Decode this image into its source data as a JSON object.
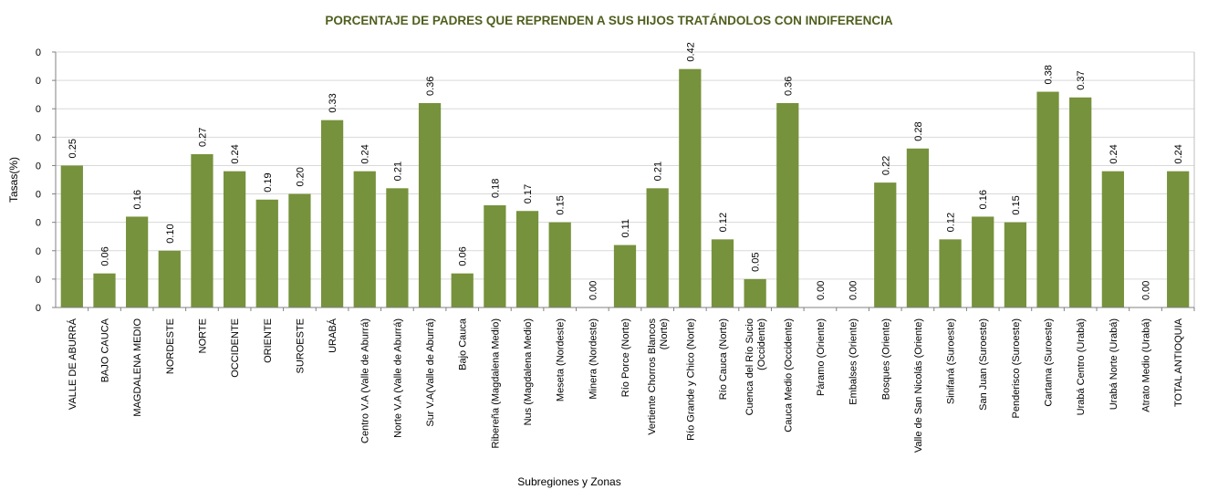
{
  "chart_data": {
    "type": "bar",
    "title": "PORCENTAJE DE PADRES QUE REPRENDEN A SUS HIJOS TRATÁNDOLOS CON INDIFERENCIA",
    "xlabel": "Subregiones y Zonas",
    "ylabel": "Tasas(%)",
    "ylim": [
      0,
      0.45
    ],
    "yticks": [
      0,
      0.05,
      0.1,
      0.15,
      0.2,
      0.25,
      0.3,
      0.35,
      0.4,
      0.45
    ],
    "ytick_labels": [
      "0",
      "0",
      "0",
      "0",
      "0",
      "0",
      "0",
      "0",
      "0",
      "0"
    ],
    "grid": true,
    "bar_color": "#76923C",
    "categories": [
      [
        "VALLE DE ABURRÁ"
      ],
      [
        "BAJO CAUCA"
      ],
      [
        "MAGDALENA MEDIO"
      ],
      [
        "NORDESTE"
      ],
      [
        "NORTE"
      ],
      [
        "OCCIDENTE"
      ],
      [
        "ORIENTE"
      ],
      [
        "SUROESTE"
      ],
      [
        "URABÁ"
      ],
      [
        "Centro V.A (Valle de Aburrá)"
      ],
      [
        "Norte V.A (Valle de Aburrá)"
      ],
      [
        "Sur V.A(Valle de Aburrá)"
      ],
      [
        "Bajo Cauca"
      ],
      [
        "Ribereña  (Magdalena Medio)"
      ],
      [
        "Nus  (Magdalena Medio)"
      ],
      [
        "Meseta  (Nordeste)"
      ],
      [
        "Minera  (Nordeste)"
      ],
      [
        "Río Porce   (Norte)"
      ],
      [
        "Vertiente Chorros Blancos",
        "(Norte)"
      ],
      [
        "Río Grande y Chico  (Norte)"
      ],
      [
        "Río Cauca  (Norte)"
      ],
      [
        "Cuenca del Río Sucio",
        "(Occidente)"
      ],
      [
        "Cauca Medio  (Occidente)"
      ],
      [
        "Páramo  (Oriente)"
      ],
      [
        "Embalses (Oriente)"
      ],
      [
        "Bosques  (Oriente)"
      ],
      [
        "Valle de San Nicolás  (Oriente)"
      ],
      [
        "Sinifaná  (Suroeste)"
      ],
      [
        "San Juan  (Suroeste)"
      ],
      [
        "Penderisco  (Suroeste)"
      ],
      [
        "Cartama  (Suroeste)"
      ],
      [
        "Urabá Centro  (Urabá)"
      ],
      [
        "Urabá Norte  (Urabá)"
      ],
      [
        "Atrato Medio (Urabá)"
      ],
      [
        "TOTAL ANTIOQUIA"
      ]
    ],
    "values": [
      0.25,
      0.06,
      0.16,
      0.1,
      0.27,
      0.24,
      0.19,
      0.2,
      0.33,
      0.24,
      0.21,
      0.36,
      0.06,
      0.18,
      0.17,
      0.15,
      0.0,
      0.11,
      0.21,
      0.42,
      0.12,
      0.05,
      0.36,
      0.0,
      0.0,
      0.22,
      0.28,
      0.12,
      0.16,
      0.15,
      0.38,
      0.37,
      0.24,
      0.0,
      0.24
    ],
    "data_labels": [
      "0.25",
      "0.06",
      "0.16",
      "0.10",
      "0.27",
      "0.24",
      "0.19",
      "0.20",
      "0.33",
      "0.24",
      "0.21",
      "0.36",
      "0.06",
      "0.18",
      "0.17",
      "0.15",
      "0.00",
      "0.11",
      "0.21",
      "0.42",
      "0.12",
      "0.05",
      "0.36",
      "0.00",
      "0.00",
      "0.22",
      "0.28",
      "0.12",
      "0.16",
      "0.15",
      "0.38",
      "0.37",
      "0.24",
      "0.00",
      "0.24"
    ]
  }
}
